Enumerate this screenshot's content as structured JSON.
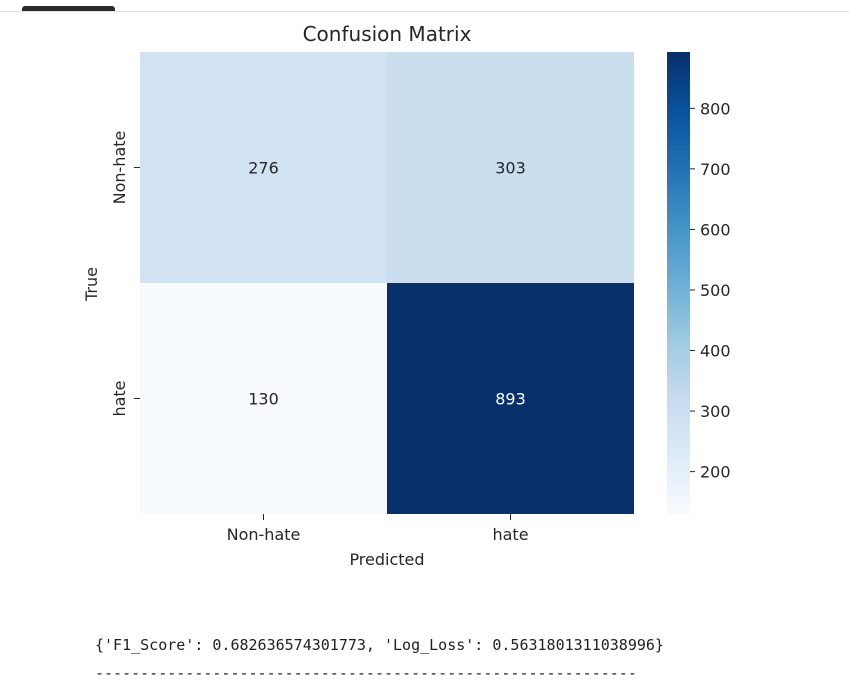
{
  "output": {
    "metrics_text": "{'F1_Score': 0.682636574301773, 'Log_Loss': 0.5631801311038996}",
    "separator": "------------------------------------------------------------"
  },
  "chart_data": {
    "type": "heatmap",
    "title": "Confusion Matrix",
    "xlabel": "Predicted",
    "ylabel": "True",
    "x_categories": [
      "Non-hate",
      "hate"
    ],
    "y_categories": [
      "Non-hate",
      "hate"
    ],
    "values": [
      [
        276,
        303
      ],
      [
        130,
        893
      ]
    ],
    "colormap": "Blues",
    "color_range": [
      130,
      893
    ],
    "colorbar_ticks": [
      200,
      300,
      400,
      500,
      600,
      700,
      800
    ],
    "annotation_colors": {
      "light_cell_text": "#262626",
      "dark_cell_text": "#ffffff"
    }
  }
}
